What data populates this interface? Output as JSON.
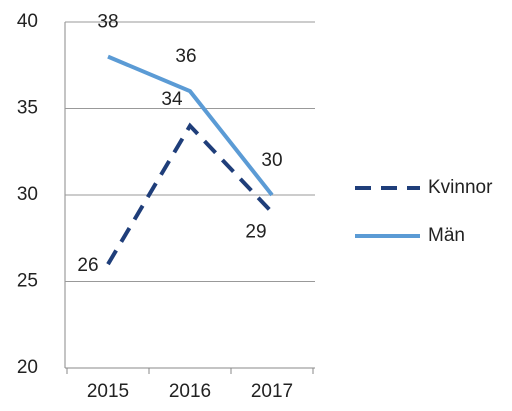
{
  "chart_data": {
    "type": "line",
    "categories": [
      "2015",
      "2016",
      "2017"
    ],
    "series": [
      {
        "name": "Kvinnor",
        "color": "#1f3e7a",
        "dash": true,
        "values": [
          26,
          34,
          29
        ]
      },
      {
        "name": "Män",
        "color": "#5b9bd5",
        "dash": false,
        "values": [
          38,
          36,
          30
        ]
      }
    ],
    "ylim": [
      20,
      40
    ],
    "yticks": [
      20,
      25,
      30,
      35,
      40
    ],
    "grid": true,
    "legend": "right"
  }
}
